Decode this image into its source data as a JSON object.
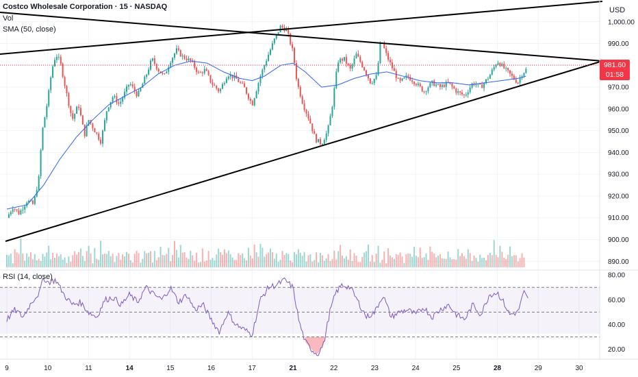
{
  "legend": {
    "title": "Costco Wholesale Corporation · 15 · NASDAQ",
    "vol": "Vol",
    "sma": "SMA (50, close)",
    "rsi": "RSI (14, close)"
  },
  "currency": "USD",
  "last_price": {
    "value": "981.60",
    "countdown": "01:58",
    "color": "#f23645"
  },
  "colors": {
    "up": "#26a69a",
    "down": "#ef5350",
    "sma": "#2962ff",
    "rsi": "#7e57c2",
    "trendline": "#000000",
    "grid": "#f0f3fa"
  },
  "chart_data": [
    {
      "type": "candlestick",
      "title": "Costco Wholesale Corporation · 15 · NASDAQ",
      "ylim": [
        886,
        1010
      ],
      "y_ticks": [
        890,
        900,
        910,
        920,
        930,
        940,
        950,
        960,
        970,
        980,
        990,
        1000
      ],
      "y_tick_labels": [
        "890.00",
        "900.00",
        "910.00",
        "920.00",
        "930.00",
        "940.00",
        "950.00",
        "960.00",
        "970.00",
        "980.00",
        "990.00",
        "1,000.00"
      ],
      "x_ticks": [
        {
          "label": "9",
          "bold": false
        },
        {
          "label": "10",
          "bold": false
        },
        {
          "label": "11",
          "bold": false
        },
        {
          "label": "14",
          "bold": true
        },
        {
          "label": "15",
          "bold": false
        },
        {
          "label": "16",
          "bold": false
        },
        {
          "label": "17",
          "bold": false
        },
        {
          "label": "21",
          "bold": true
        },
        {
          "label": "22",
          "bold": false
        },
        {
          "label": "23",
          "bold": false
        },
        {
          "label": "24",
          "bold": false
        },
        {
          "label": "25",
          "bold": false
        },
        {
          "label": "28",
          "bold": true
        },
        {
          "label": "29",
          "bold": false
        },
        {
          "label": "30",
          "bold": false
        }
      ],
      "close_path": [
        [
          9.0,
          910
        ],
        [
          9.15,
          915
        ],
        [
          9.3,
          912
        ],
        [
          9.5,
          918
        ],
        [
          9.65,
          916
        ],
        [
          9.8,
          930
        ],
        [
          9.85,
          948
        ],
        [
          10.0,
          964
        ],
        [
          10.1,
          978
        ],
        [
          10.2,
          985
        ],
        [
          10.3,
          982
        ],
        [
          10.45,
          968
        ],
        [
          10.6,
          955
        ],
        [
          10.75,
          962
        ],
        [
          10.9,
          948
        ],
        [
          11.0,
          955
        ],
        [
          11.15,
          950
        ],
        [
          11.3,
          945
        ],
        [
          11.45,
          960
        ],
        [
          11.6,
          966
        ],
        [
          11.75,
          962
        ],
        [
          11.9,
          968
        ],
        [
          12.0,
          972
        ],
        [
          12.2,
          966
        ],
        [
          12.4,
          975
        ],
        [
          12.55,
          983
        ],
        [
          12.7,
          978
        ],
        [
          12.85,
          975
        ],
        [
          13.0,
          982
        ],
        [
          13.15,
          987
        ],
        [
          13.3,
          984
        ],
        [
          13.5,
          982
        ],
        [
          13.7,
          976
        ],
        [
          13.85,
          978
        ],
        [
          14.0,
          972
        ],
        [
          14.2,
          968
        ],
        [
          14.4,
          976
        ],
        [
          14.6,
          974
        ],
        [
          14.8,
          970
        ],
        [
          15.0,
          962
        ],
        [
          15.2,
          975
        ],
        [
          15.4,
          985
        ],
        [
          15.55,
          992
        ],
        [
          15.7,
          998
        ],
        [
          15.85,
          996
        ],
        [
          16.0,
          986
        ],
        [
          16.1,
          972
        ],
        [
          16.25,
          962
        ],
        [
          16.4,
          955
        ],
        [
          16.55,
          946
        ],
        [
          16.7,
          944
        ],
        [
          16.85,
          950
        ],
        [
          16.95,
          960
        ],
        [
          17.1,
          982
        ],
        [
          17.25,
          983
        ],
        [
          17.4,
          978
        ],
        [
          17.55,
          985
        ],
        [
          17.75,
          978
        ],
        [
          17.9,
          972
        ],
        [
          18.05,
          975
        ],
        [
          18.15,
          992
        ],
        [
          18.3,
          984
        ],
        [
          18.45,
          978
        ],
        [
          18.6,
          972
        ],
        [
          18.8,
          975
        ],
        [
          19.0,
          972
        ],
        [
          19.2,
          968
        ],
        [
          19.4,
          972
        ],
        [
          19.6,
          970
        ],
        [
          19.8,
          972
        ],
        [
          20.0,
          968
        ],
        [
          20.2,
          966
        ],
        [
          20.4,
          972
        ],
        [
          20.6,
          970
        ],
        [
          20.8,
          975
        ],
        [
          21.0,
          982
        ],
        [
          21.2,
          978
        ],
        [
          21.35,
          975
        ],
        [
          21.5,
          972
        ],
        [
          21.6,
          976
        ],
        [
          21.7,
          978
        ]
      ],
      "sma_path": [
        [
          9.0,
          914
        ],
        [
          9.5,
          916
        ],
        [
          9.9,
          925
        ],
        [
          10.3,
          937
        ],
        [
          10.7,
          947
        ],
        [
          11.1,
          955
        ],
        [
          11.5,
          962
        ],
        [
          11.9,
          966
        ],
        [
          12.3,
          970
        ],
        [
          12.7,
          976
        ],
        [
          13.1,
          980
        ],
        [
          13.5,
          982
        ],
        [
          13.9,
          981
        ],
        [
          14.3,
          977
        ],
        [
          14.7,
          974
        ],
        [
          15.0,
          973
        ],
        [
          15.3,
          975
        ],
        [
          15.7,
          980
        ],
        [
          16.0,
          981
        ],
        [
          16.3,
          977
        ],
        [
          16.7,
          970
        ],
        [
          17.1,
          971
        ],
        [
          17.5,
          974
        ],
        [
          17.9,
          976
        ],
        [
          18.3,
          977
        ],
        [
          18.7,
          975
        ],
        [
          19.1,
          973
        ],
        [
          19.5,
          972
        ],
        [
          19.9,
          972
        ],
        [
          20.3,
          971
        ],
        [
          20.7,
          972
        ],
        [
          21.1,
          973
        ],
        [
          21.5,
          974
        ],
        [
          21.7,
          975
        ]
      ]
    },
    {
      "type": "bar",
      "title": "Vol",
      "values_relative": [
        0.3,
        0.6,
        0.25,
        0.2,
        0.9,
        0.4,
        0.3,
        1.0,
        0.5,
        0.3,
        0.25,
        0.35,
        0.55,
        0.3,
        0.2,
        0.3,
        0.25,
        0.2,
        0.45,
        0.25,
        0.3,
        0.7,
        0.3,
        0.2,
        0.25,
        0.35,
        0.6,
        0.25,
        0.3,
        0.4,
        0.2,
        0.5,
        0.3,
        0.25,
        0.35,
        0.3,
        0.25,
        0.6,
        0.3,
        0.2
      ]
    },
    {
      "type": "line",
      "title": "RSI (14, close)",
      "ylim": [
        12,
        84
      ],
      "y_ticks": [
        20,
        40,
        60,
        80
      ],
      "y_tick_labels": [
        "20.00",
        "40.00",
        "60.00",
        "80.00"
      ],
      "bands": [
        30,
        50,
        70
      ],
      "path": [
        [
          9.0,
          44
        ],
        [
          9.2,
          52
        ],
        [
          9.4,
          46
        ],
        [
          9.6,
          58
        ],
        [
          9.8,
          66
        ],
        [
          9.9,
          78
        ],
        [
          10.0,
          74
        ],
        [
          10.2,
          76
        ],
        [
          10.4,
          64
        ],
        [
          10.6,
          56
        ],
        [
          10.8,
          58
        ],
        [
          11.0,
          50
        ],
        [
          11.2,
          46
        ],
        [
          11.4,
          60
        ],
        [
          11.6,
          62
        ],
        [
          11.8,
          56
        ],
        [
          12.0,
          64
        ],
        [
          12.2,
          58
        ],
        [
          12.4,
          70
        ],
        [
          12.6,
          64
        ],
        [
          12.8,
          60
        ],
        [
          13.0,
          70
        ],
        [
          13.2,
          58
        ],
        [
          13.4,
          64
        ],
        [
          13.6,
          52
        ],
        [
          13.8,
          56
        ],
        [
          14.0,
          44
        ],
        [
          14.2,
          34
        ],
        [
          14.4,
          50
        ],
        [
          14.6,
          40
        ],
        [
          14.8,
          36
        ],
        [
          15.0,
          32
        ],
        [
          15.2,
          60
        ],
        [
          15.4,
          70
        ],
        [
          15.6,
          72
        ],
        [
          15.8,
          76
        ],
        [
          16.0,
          70
        ],
        [
          16.15,
          42
        ],
        [
          16.3,
          26
        ],
        [
          16.45,
          20
        ],
        [
          16.6,
          16
        ],
        [
          16.75,
          24
        ],
        [
          16.9,
          50
        ],
        [
          17.05,
          66
        ],
        [
          17.2,
          72
        ],
        [
          17.4,
          70
        ],
        [
          17.6,
          58
        ],
        [
          17.8,
          46
        ],
        [
          18.0,
          50
        ],
        [
          18.2,
          64
        ],
        [
          18.4,
          46
        ],
        [
          18.6,
          50
        ],
        [
          18.8,
          52
        ],
        [
          19.0,
          48
        ],
        [
          19.2,
          54
        ],
        [
          19.4,
          46
        ],
        [
          19.6,
          52
        ],
        [
          19.8,
          56
        ],
        [
          20.0,
          48
        ],
        [
          20.2,
          44
        ],
        [
          20.4,
          56
        ],
        [
          20.6,
          48
        ],
        [
          20.8,
          64
        ],
        [
          21.0,
          66
        ],
        [
          21.15,
          58
        ],
        [
          21.3,
          48
        ],
        [
          21.5,
          50
        ],
        [
          21.65,
          66
        ],
        [
          21.75,
          60
        ]
      ]
    }
  ]
}
